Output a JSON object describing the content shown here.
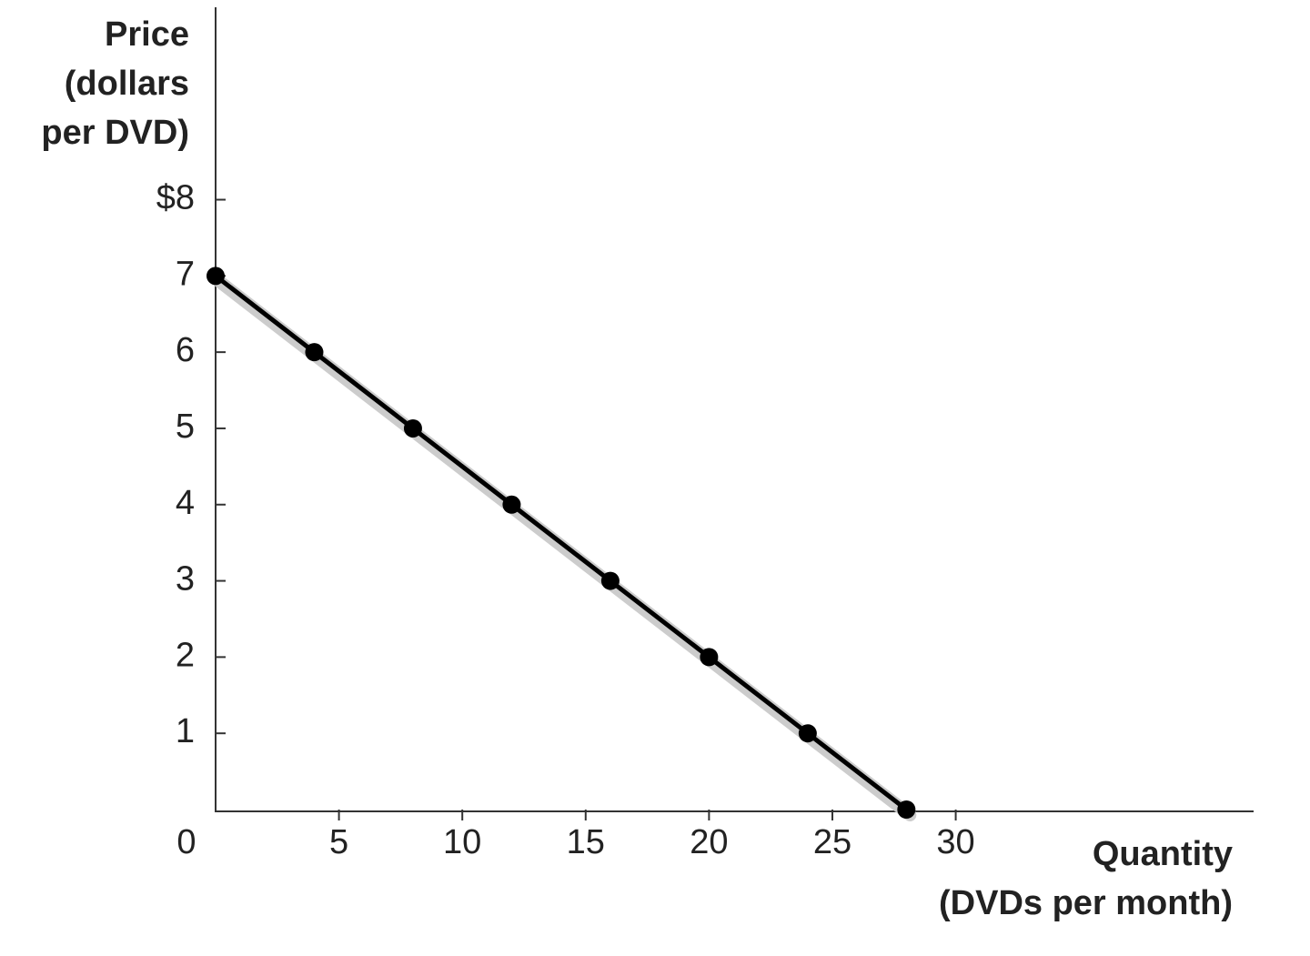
{
  "chart_data": {
    "type": "line",
    "ylabel": [
      "Price",
      "(dollars",
      "per DVD)"
    ],
    "xlabel": [
      "Quantity",
      "(DVDs per month)"
    ],
    "x": [
      0,
      4,
      8,
      12,
      16,
      20,
      24,
      28
    ],
    "values": [
      7,
      6,
      5,
      4,
      3,
      2,
      1,
      0
    ],
    "color": "#000000",
    "markers": true,
    "xlim": [
      0,
      42
    ],
    "ylim": [
      0,
      10.5
    ],
    "xticks": [
      0,
      5,
      10,
      15,
      20,
      25,
      30
    ],
    "yticks": [
      1,
      2,
      3,
      4,
      5,
      6,
      7,
      {
        "value": 8,
        "label": "$8"
      }
    ]
  }
}
